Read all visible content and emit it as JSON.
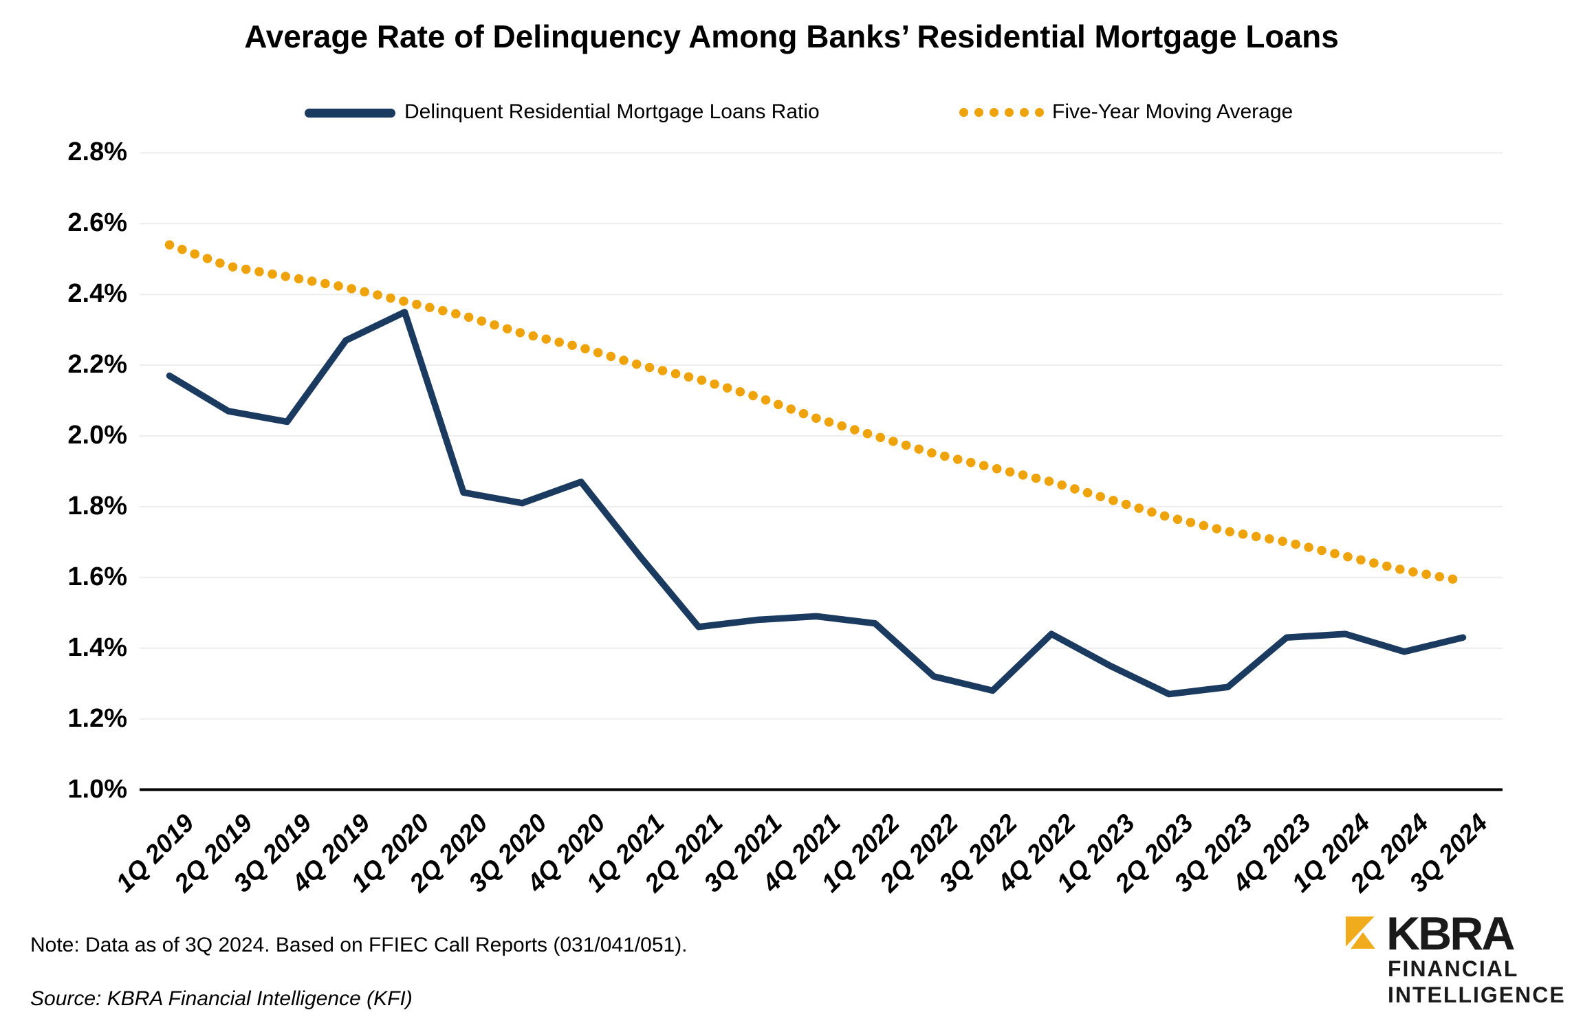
{
  "title": "Average Rate of Delinquency Among Banks’ Residential Mortgage Loans",
  "legend": {
    "ratio_label": "Delinquent Residential Mortgage Loans Ratio",
    "ma_label": "Five-Year Moving Average"
  },
  "colors": {
    "navy": "#1B3A5F",
    "gold": "#EFA30B",
    "logo_gold": "#F0AC1C",
    "gridline": "#EDEDED",
    "axis": "#000000"
  },
  "chart_data": {
    "type": "line",
    "title": "Average Rate of Delinquency Among Banks’ Residential Mortgage Loans",
    "categories": [
      "1Q 2019",
      "2Q 2019",
      "3Q 2019",
      "4Q 2019",
      "1Q 2020",
      "2Q 2020",
      "3Q 2020",
      "4Q 2020",
      "1Q 2021",
      "2Q 2021",
      "3Q 2021",
      "4Q 2021",
      "1Q 2022",
      "2Q 2022",
      "3Q 2022",
      "4Q 2022",
      "1Q 2023",
      "2Q 2023",
      "3Q 2023",
      "4Q 2023",
      "1Q 2024",
      "2Q 2024",
      "3Q 2024"
    ],
    "series": [
      {
        "name": "Delinquent Residential Mortgage Loans Ratio",
        "style": "solid",
        "color": "#1B3A5F",
        "values": [
          2.17,
          2.07,
          2.04,
          2.27,
          2.35,
          1.84,
          1.81,
          1.87,
          1.66,
          1.46,
          1.48,
          1.49,
          1.47,
          1.32,
          1.28,
          1.44,
          1.35,
          1.27,
          1.29,
          1.43,
          1.44,
          1.39,
          1.43
        ]
      },
      {
        "name": "Five-Year Moving Average",
        "style": "dotted",
        "color": "#EFA30B",
        "values": [
          2.54,
          2.48,
          2.45,
          2.42,
          2.38,
          2.34,
          2.29,
          2.25,
          2.2,
          2.16,
          2.11,
          2.05,
          2.0,
          1.95,
          1.91,
          1.87,
          1.82,
          1.77,
          1.73,
          1.7,
          1.66,
          1.62,
          1.59
        ]
      }
    ],
    "xlabel": "",
    "ylabel": "",
    "ylim": [
      1.0,
      2.8
    ],
    "ytick_step": 0.2,
    "ytick_format": "percent_1dp",
    "grid": "horizontal",
    "legend_position": "top"
  },
  "footnotes": {
    "note": "Note: Data as of 3Q 2024. Based on FFIEC Call Reports (031/041/051).",
    "source": "Source: KBRA Financial Intelligence (KFI)"
  },
  "logo": {
    "brand": "KBRA",
    "line1": "FINANCIAL",
    "line2": "INTELLIGENCE"
  }
}
